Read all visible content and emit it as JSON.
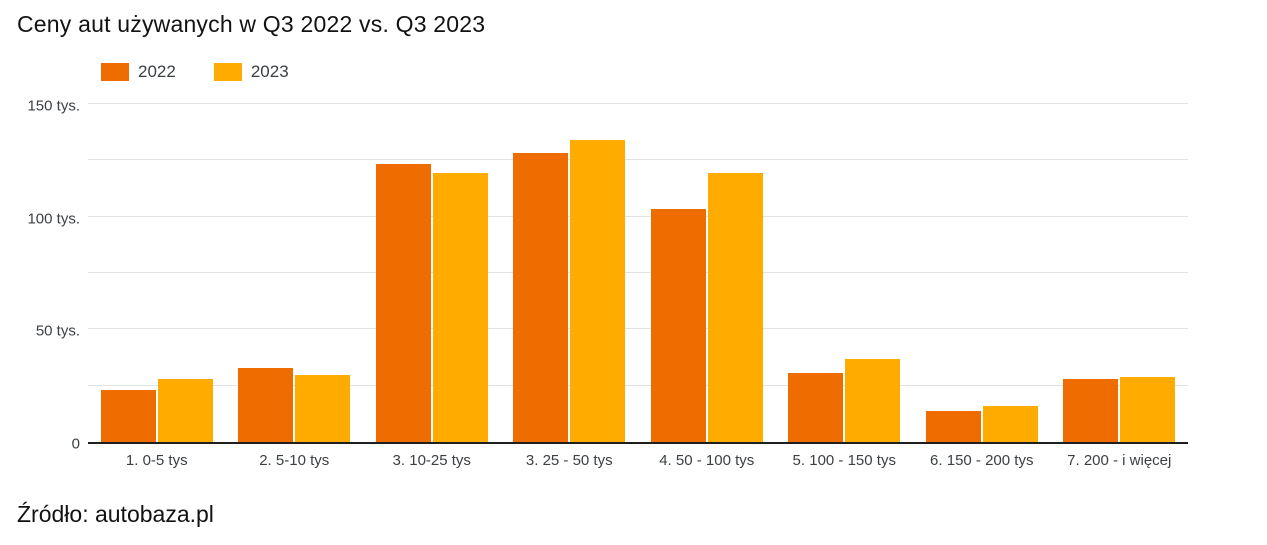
{
  "title": "Ceny aut używanych w Q3 2022 vs. Q3 2023",
  "source": "Źródło: autobaza.pl",
  "colors": {
    "series_2022": "#EF6C00",
    "series_2023": "#FFAB00",
    "gridline": "#e2e2e2",
    "axis_line": "#1f1f1f",
    "tick_text": "#3c4043"
  },
  "legend": {
    "items": [
      {
        "label": "2022"
      },
      {
        "label": "2023"
      }
    ]
  },
  "chart_data": {
    "type": "bar",
    "title": "Ceny aut używanych w Q3 2022 vs. Q3 2023",
    "categories": [
      "1. 0-5 tys",
      "2. 5-10 tys",
      "3. 10-25 tys",
      "3. 25 - 50 tys",
      "4. 50 - 100 tys",
      "5. 100 - 150 tys",
      "6. 150 - 200 tys",
      "7. 200 - i więcej"
    ],
    "series": [
      {
        "name": "2022",
        "color": "#EF6C00",
        "values": [
          23,
          33,
          124,
          129,
          104,
          31,
          14,
          28
        ]
      },
      {
        "name": "2023",
        "color": "#FFAB00",
        "values": [
          28,
          30,
          120,
          135,
          120,
          37,
          16,
          29
        ]
      }
    ],
    "xlabel": "",
    "ylabel": "",
    "ylim": [
      0,
      150
    ],
    "y_ticks": [
      {
        "value": 0,
        "label": "0"
      },
      {
        "value": 50,
        "label": "50 tys."
      },
      {
        "value": 100,
        "label": "100 tys."
      },
      {
        "value": 150,
        "label": "150 tys."
      }
    ],
    "gridline_step": 25,
    "grid": true,
    "legend_position": "top-left"
  }
}
